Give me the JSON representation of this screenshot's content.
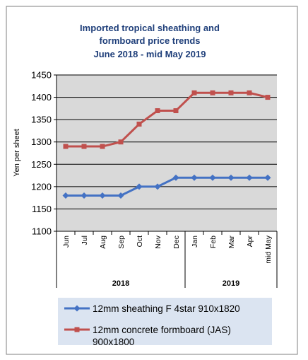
{
  "chart_data": {
    "type": "line",
    "title_lines": [
      "Imported tropical sheathing and",
      "formboard price trends",
      "June 2018 - mid May 2019"
    ],
    "ylabel": "Yen per sheet",
    "xlabel": "",
    "ylim": [
      1100,
      1450
    ],
    "yticks": [
      1100,
      1150,
      1200,
      1250,
      1300,
      1350,
      1400,
      1450
    ],
    "categories": [
      "Jun",
      "Jul",
      "Aug",
      "Sep",
      "Oct",
      "Nov",
      "Dec",
      "Jan",
      "Feb",
      "Mar",
      "Apr",
      "mid May"
    ],
    "groups": [
      {
        "label": "2018",
        "count": 7
      },
      {
        "label": "2019",
        "count": 5
      }
    ],
    "grid": true,
    "legend_position": "bottom",
    "series": [
      {
        "name": "12mm sheathing F 4star 910x1820",
        "color": "#4472c4",
        "marker": "diamond",
        "values": [
          1180,
          1180,
          1180,
          1180,
          1200,
          1200,
          1220,
          1220,
          1220,
          1220,
          1220,
          1220
        ]
      },
      {
        "name": "12mm concrete formboard (JAS) 900x1800",
        "legend_lines": [
          "12mm concrete formboard (JAS)",
          "900x1800"
        ],
        "color": "#c0504d",
        "marker": "square",
        "values": [
          1290,
          1290,
          1290,
          1300,
          1340,
          1370,
          1370,
          1410,
          1410,
          1410,
          1410,
          1400
        ]
      }
    ]
  },
  "colors": {
    "frame": "#7f7f7f",
    "plot_background": "#d9d9d9",
    "gridline": "#000000",
    "legend_background": "#dbe4f1",
    "title": "#1f3f7a"
  }
}
